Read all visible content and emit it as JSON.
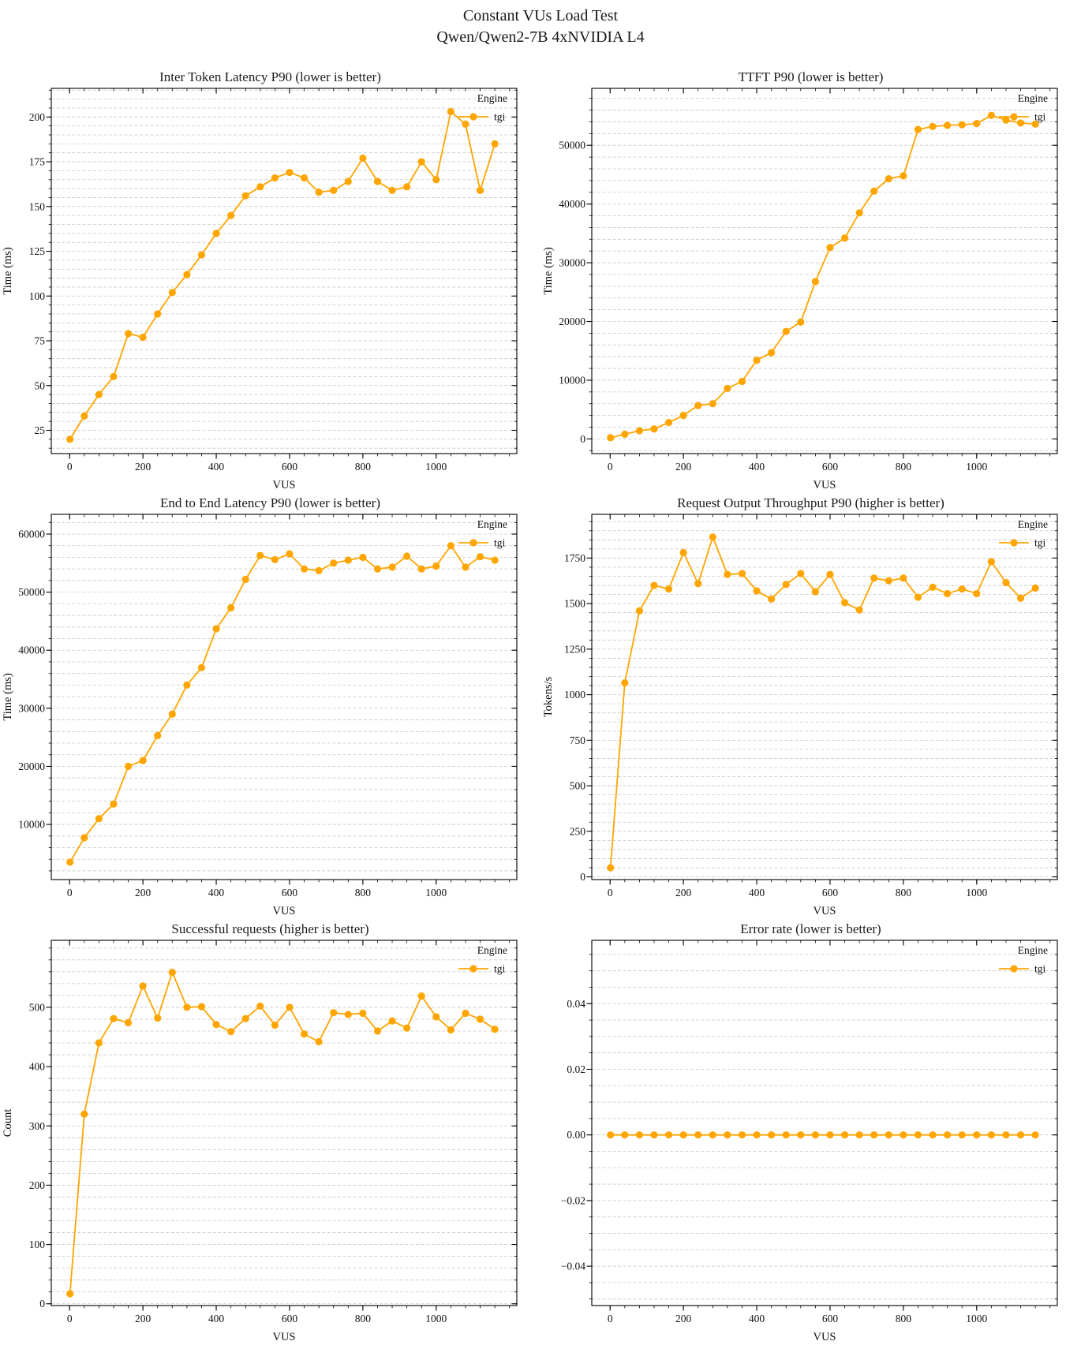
{
  "page_title": {
    "line1": "Constant VUs Load Test",
    "line2": "Qwen/Qwen2-7B 4xNVIDIA L4"
  },
  "accent_color": "#FFA500",
  "legend": {
    "title": "Engine",
    "series_label": "tgi"
  },
  "chart_data": [
    {
      "type": "line",
      "title": "Inter Token Latency P90 (lower is better)",
      "xlabel": "VUS",
      "ylabel": "Time (ms)",
      "legend_title": "Engine",
      "series_name": "tgi",
      "xlim": [
        -50,
        1220
      ],
      "ylim": [
        12,
        216
      ],
      "xticks": [
        0,
        200,
        400,
        600,
        800,
        1000
      ],
      "xtick_labels": [
        "0",
        "200",
        "400",
        "600",
        "800",
        "1000"
      ],
      "xminor_step": 40,
      "yticks": [
        25,
        50,
        75,
        100,
        125,
        150,
        175,
        200
      ],
      "ytick_labels": [
        "25",
        "50",
        "75",
        "100",
        "125",
        "150",
        "175",
        "200"
      ],
      "grid_step": 5,
      "grid": "horizontal-dashed",
      "legend_position": "top-right",
      "x": [
        1,
        40,
        80,
        120,
        160,
        200,
        240,
        280,
        320,
        360,
        400,
        440,
        480,
        520,
        560,
        600,
        640,
        680,
        720,
        760,
        800,
        840,
        880,
        920,
        960,
        1000,
        1040,
        1080,
        1120,
        1160
      ],
      "y": [
        20,
        33,
        45,
        55,
        79,
        77,
        90,
        102,
        112,
        123,
        135,
        145,
        156,
        161,
        166,
        169,
        166,
        158,
        159,
        164,
        177,
        164,
        159,
        161,
        175,
        165,
        203,
        196,
        159,
        185
      ]
    },
    {
      "type": "line",
      "title": "TTFT P90 (lower is better)",
      "xlabel": "VUS",
      "ylabel": "Time (ms)",
      "legend_title": "Engine",
      "series_name": "tgi",
      "xlim": [
        -50,
        1220
      ],
      "ylim": [
        -2500,
        59700
      ],
      "xticks": [
        0,
        200,
        400,
        600,
        800,
        1000
      ],
      "xtick_labels": [
        "0",
        "200",
        "400",
        "600",
        "800",
        "1000"
      ],
      "xminor_step": 40,
      "yticks": [
        0,
        10000,
        20000,
        30000,
        40000,
        50000
      ],
      "ytick_labels": [
        "0",
        "10000",
        "20000",
        "30000",
        "40000",
        "50000"
      ],
      "grid_step": 2000,
      "grid": "horizontal-dashed",
      "legend_position": "top-right",
      "x": [
        1,
        40,
        80,
        120,
        160,
        200,
        240,
        280,
        320,
        360,
        400,
        440,
        480,
        520,
        560,
        600,
        640,
        680,
        720,
        760,
        800,
        840,
        880,
        920,
        960,
        1000,
        1040,
        1080,
        1120,
        1160
      ],
      "y": [
        200,
        800,
        1400,
        1700,
        2800,
        4000,
        5700,
        6000,
        8600,
        9800,
        13400,
        14700,
        18300,
        19900,
        26800,
        32600,
        34200,
        38500,
        42200,
        44300,
        44800,
        52700,
        53200,
        53400,
        53500,
        53700,
        55100,
        54300,
        53800,
        53600
      ]
    },
    {
      "type": "line",
      "title": "End to End Latency P90 (lower is better)",
      "xlabel": "VUS",
      "ylabel": "Time (ms)",
      "legend_title": "Engine",
      "series_name": "tgi",
      "xlim": [
        -50,
        1220
      ],
      "ylim": [
        500,
        63400
      ],
      "xticks": [
        0,
        200,
        400,
        600,
        800,
        1000
      ],
      "xtick_labels": [
        "0",
        "200",
        "400",
        "600",
        "800",
        "1000"
      ],
      "xminor_step": 40,
      "yticks": [
        10000,
        20000,
        30000,
        40000,
        50000,
        60000
      ],
      "ytick_labels": [
        "10000",
        "20000",
        "30000",
        "40000",
        "50000",
        "60000"
      ],
      "grid_step": 2000,
      "grid": "horizontal-dashed",
      "legend_position": "top-right",
      "x": [
        1,
        40,
        80,
        120,
        160,
        200,
        240,
        280,
        320,
        360,
        400,
        440,
        480,
        520,
        560,
        600,
        640,
        680,
        720,
        760,
        800,
        840,
        880,
        920,
        960,
        1000,
        1040,
        1080,
        1120,
        1160
      ],
      "y": [
        3500,
        7700,
        11000,
        13500,
        20000,
        21000,
        25300,
        29000,
        34000,
        37000,
        43700,
        47300,
        52200,
        56300,
        55600,
        56600,
        54000,
        53700,
        55000,
        55500,
        56000,
        54000,
        54300,
        56200,
        54000,
        54500,
        58000,
        54300,
        56100,
        55500
      ]
    },
    {
      "type": "line",
      "title": "Request Output Throughput P90 (higher is better)",
      "xlabel": "VUS",
      "ylabel": "Tokens/s",
      "legend_title": "Engine",
      "series_name": "tgi",
      "xlim": [
        -50,
        1220
      ],
      "ylim": [
        -15,
        1990
      ],
      "xticks": [
        0,
        200,
        400,
        600,
        800,
        1000
      ],
      "xtick_labels": [
        "0",
        "200",
        "400",
        "600",
        "800",
        "1000"
      ],
      "xminor_step": 40,
      "yticks": [
        0,
        250,
        500,
        750,
        1000,
        1250,
        1500,
        1750
      ],
      "ytick_labels": [
        "0",
        "250",
        "500",
        "750",
        "1000",
        "1250",
        "1500",
        "1750"
      ],
      "grid_step": 50,
      "grid": "horizontal-dashed",
      "legend_position": "top-right",
      "x": [
        1,
        40,
        80,
        120,
        160,
        200,
        240,
        280,
        320,
        360,
        400,
        440,
        480,
        520,
        560,
        600,
        640,
        680,
        720,
        760,
        800,
        840,
        880,
        920,
        960,
        1000,
        1040,
        1080,
        1120,
        1160
      ],
      "y": [
        50,
        1065,
        1460,
        1600,
        1580,
        1780,
        1610,
        1865,
        1660,
        1665,
        1570,
        1525,
        1605,
        1665,
        1565,
        1660,
        1505,
        1465,
        1640,
        1625,
        1640,
        1535,
        1590,
        1555,
        1580,
        1555,
        1730,
        1615,
        1530,
        1585
      ]
    },
    {
      "type": "line",
      "title": "Successful requests (higher is better)",
      "xlabel": "VUS",
      "ylabel": "Count",
      "legend_title": "Engine",
      "series_name": "tgi",
      "xlim": [
        -50,
        1220
      ],
      "ylim": [
        -3,
        613
      ],
      "xticks": [
        0,
        200,
        400,
        600,
        800,
        1000
      ],
      "xtick_labels": [
        "0",
        "200",
        "400",
        "600",
        "800",
        "1000"
      ],
      "xminor_step": 40,
      "yticks": [
        0,
        100,
        200,
        300,
        400,
        500
      ],
      "ytick_labels": [
        "0",
        "100",
        "200",
        "300",
        "400",
        "500"
      ],
      "grid_step": 20,
      "grid": "horizontal-dashed",
      "legend_position": "top-right",
      "x": [
        1,
        40,
        80,
        120,
        160,
        200,
        240,
        280,
        320,
        360,
        400,
        440,
        480,
        520,
        560,
        600,
        640,
        680,
        720,
        760,
        800,
        840,
        880,
        920,
        960,
        1000,
        1040,
        1080,
        1120,
        1160
      ],
      "y": [
        17,
        320,
        440,
        481,
        474,
        536,
        482,
        559,
        500,
        501,
        471,
        459,
        481,
        502,
        470,
        500,
        455,
        442,
        491,
        488,
        490,
        460,
        477,
        465,
        519,
        484,
        462,
        490,
        480,
        463
      ]
    },
    {
      "type": "line",
      "title": "Error rate (lower is better)",
      "xlabel": "VUS",
      "ylabel": "",
      "legend_title": "Engine",
      "series_name": "tgi",
      "xlim": [
        -50,
        1220
      ],
      "ylim": [
        -0.052,
        0.0593
      ],
      "xticks": [
        0,
        200,
        400,
        600,
        800,
        1000
      ],
      "xtick_labels": [
        "0",
        "200",
        "400",
        "600",
        "800",
        "1000"
      ],
      "xminor_step": 40,
      "yticks": [
        -0.04,
        -0.02,
        0,
        0.02,
        0.04
      ],
      "ytick_labels": [
        "−0.04",
        "−0.02",
        "0.00",
        "0.02",
        "0.04"
      ],
      "grid_step": 0.005,
      "grid": "horizontal-dashed",
      "legend_position": "top-right",
      "x": [
        1,
        40,
        80,
        120,
        160,
        200,
        240,
        280,
        320,
        360,
        400,
        440,
        480,
        520,
        560,
        600,
        640,
        680,
        720,
        760,
        800,
        840,
        880,
        920,
        960,
        1000,
        1040,
        1080,
        1120,
        1160
      ],
      "y": [
        0,
        0,
        0,
        0,
        0,
        0,
        0,
        0,
        0,
        0,
        0,
        0,
        0,
        0,
        0,
        0,
        0,
        0,
        0,
        0,
        0,
        0,
        0,
        0,
        0,
        0,
        0,
        0,
        0,
        0
      ]
    }
  ]
}
